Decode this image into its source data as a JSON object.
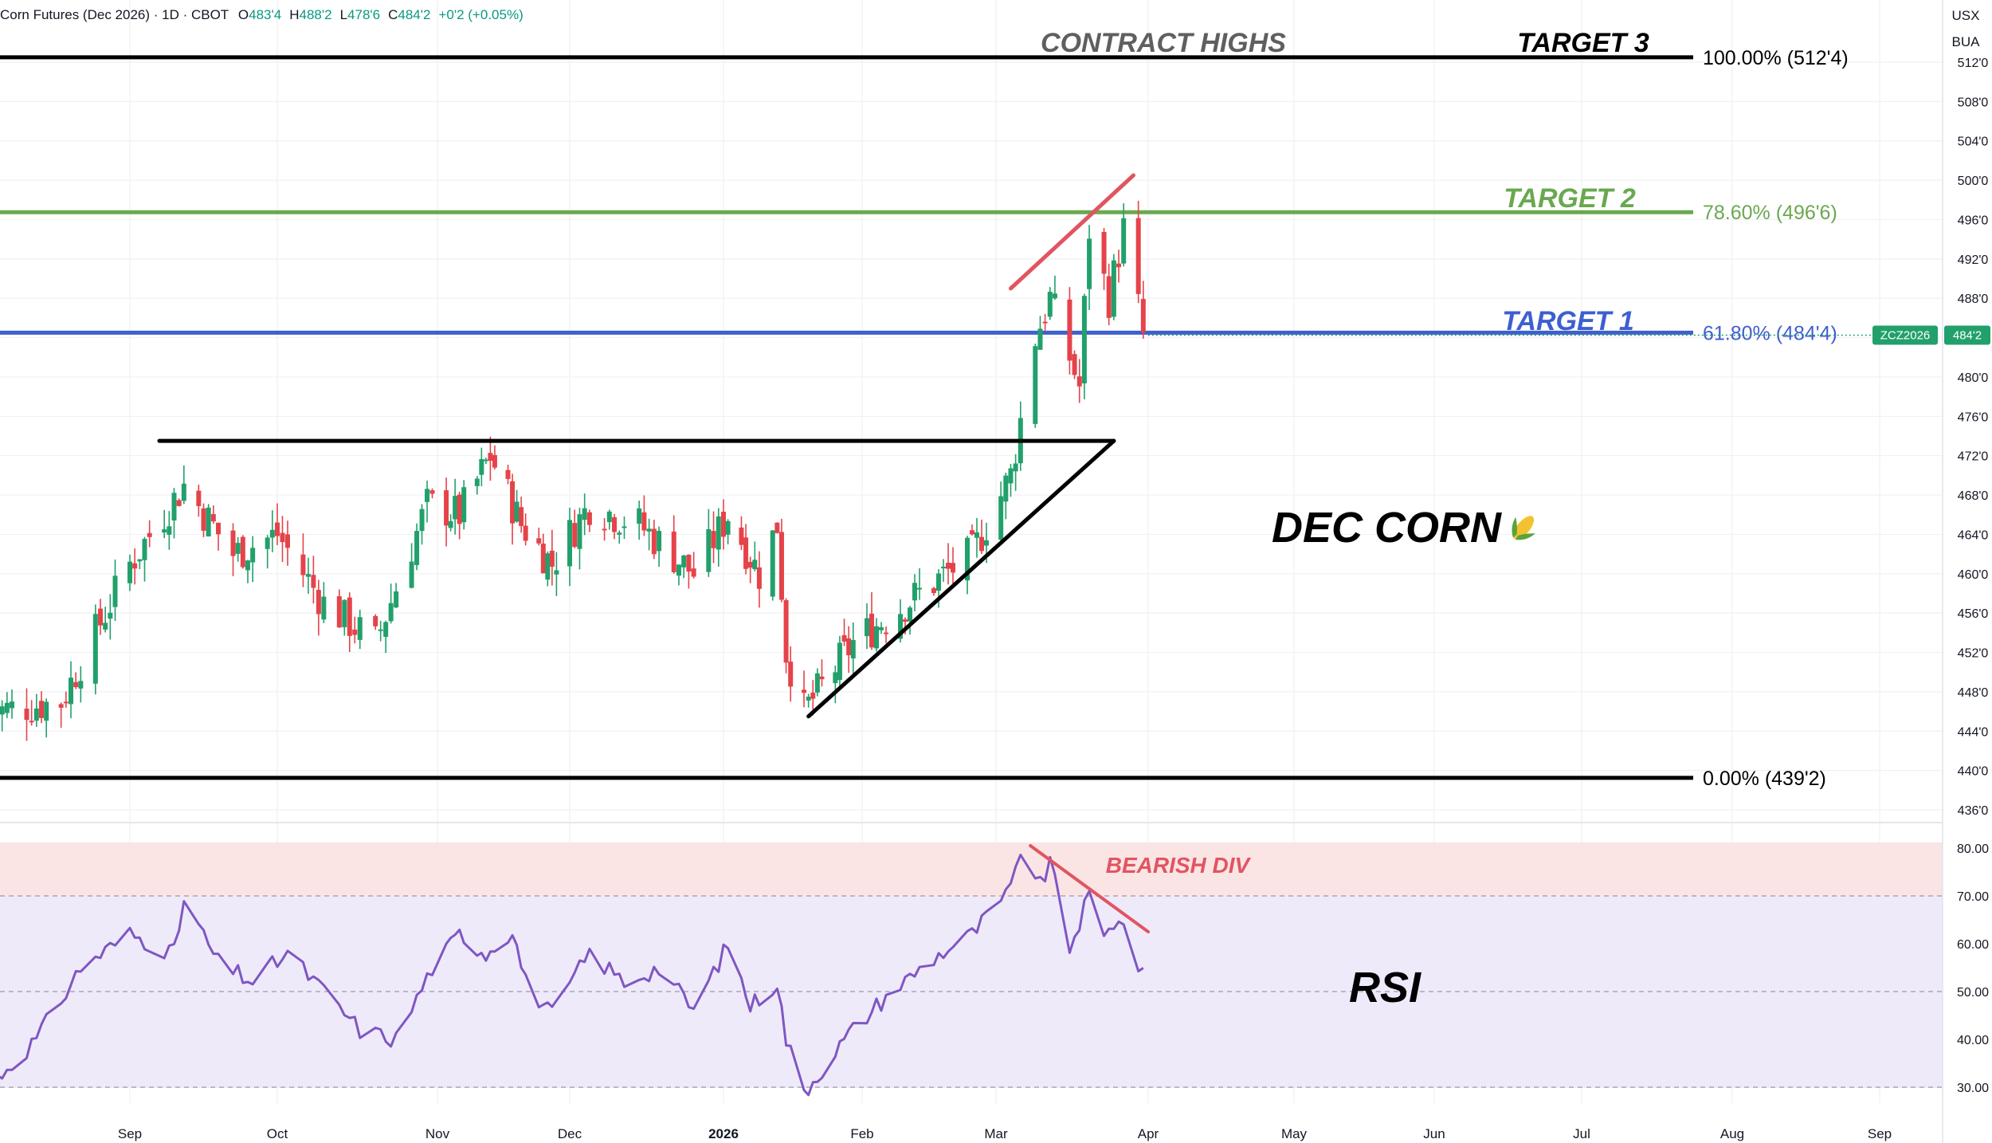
{
  "header": {
    "symbol": "Corn Futures (Dec 2026) · 1D · CBOT",
    "o_label": "O",
    "o": "483'4",
    "h_label": "H",
    "h": "488'2",
    "l_label": "L",
    "l": "478'6",
    "c_label": "C",
    "c": "484'2",
    "change": "+0'2 (+0.05%)"
  },
  "top_right": {
    "currency": "USX",
    "unit": "BUA"
  },
  "price_tag": {
    "symbol": "ZCZ2026",
    "price": "484'2"
  },
  "annotations": {
    "contract_highs": "CONTRACT HIGHS",
    "target3": "TARGET 3",
    "target2": "TARGET 2",
    "target1": "TARGET 1",
    "title": "DEC CORN",
    "rsi": "RSI",
    "bearish_div": "BEARISH DIV"
  },
  "colors": {
    "up": "#22a06b",
    "down": "#e5434a",
    "rsi_line": "#7e57c2",
    "fib_100": "#000000",
    "fib_786": "#6aa84f",
    "fib_618": "#3d5fcf",
    "fib_0": "#000000",
    "trendline": "#000000",
    "divergence": "#e05561"
  },
  "chart_data": [
    {
      "type": "candlestick",
      "name": "Corn Futures (Dec 2026)",
      "x_axis": {
        "labels": [
          "Sep",
          "Oct",
          "Nov",
          "Dec",
          "2026",
          "Feb",
          "Mar",
          "Apr",
          "May",
          "Jun",
          "Jul",
          "Aug",
          "Sep"
        ],
        "range": [
          "2025-08-04",
          "2026-09-30"
        ]
      },
      "y_axis": {
        "ticks": [
          "512'0",
          "508'0",
          "504'0",
          "500'0",
          "496'0",
          "492'0",
          "488'0",
          "484'0",
          "480'0",
          "476'0",
          "472'0",
          "468'0",
          "464'0",
          "460'0",
          "456'0",
          "452'0",
          "448'0",
          "444'0",
          "440'0",
          "436'0"
        ],
        "range": [
          435,
          514
        ]
      },
      "fib_levels": [
        {
          "pct": "100.00%",
          "label": "(512'4)",
          "value": 512.5
        },
        {
          "pct": "78.60%",
          "label": "(496'6)",
          "value": 496.75
        },
        {
          "pct": "61.80%",
          "label": "(484'4)",
          "value": 484.5
        },
        {
          "pct": "0.00%",
          "label": "(439'2)",
          "value": 439.25
        }
      ],
      "anchors": [
        {
          "date": "2025-08-04",
          "close": 446
        },
        {
          "date": "2025-08-18",
          "close": 447
        },
        {
          "date": "2025-09-01",
          "close": 461
        },
        {
          "date": "2025-09-12",
          "close": 469
        },
        {
          "date": "2025-09-22",
          "close": 462
        },
        {
          "date": "2025-10-01",
          "close": 464
        },
        {
          "date": "2025-10-10",
          "close": 457
        },
        {
          "date": "2025-10-20",
          "close": 453
        },
        {
          "date": "2025-10-30",
          "close": 467
        },
        {
          "date": "2025-11-06",
          "close": 466
        },
        {
          "date": "2025-11-13",
          "close": 472
        },
        {
          "date": "2025-11-20",
          "close": 465
        },
        {
          "date": "2025-11-27",
          "close": 461
        },
        {
          "date": "2025-12-05",
          "close": 467
        },
        {
          "date": "2025-12-15",
          "close": 465
        },
        {
          "date": "2025-12-26",
          "close": 460
        },
        {
          "date": "2026-01-02",
          "close": 466
        },
        {
          "date": "2026-01-09",
          "close": 460
        },
        {
          "date": "2026-01-13",
          "close": 465
        },
        {
          "date": "2026-01-15",
          "close": 452
        },
        {
          "date": "2026-01-19",
          "close": 446
        },
        {
          "date": "2026-01-30",
          "close": 453
        },
        {
          "date": "2026-02-13",
          "close": 458
        },
        {
          "date": "2026-02-24",
          "close": 462
        },
        {
          "date": "2026-03-04",
          "close": 470
        },
        {
          "date": "2026-03-09",
          "close": 484
        },
        {
          "date": "2026-03-12",
          "close": 488
        },
        {
          "date": "2026-03-18",
          "close": 479
        },
        {
          "date": "2026-03-20",
          "close": 495
        },
        {
          "date": "2026-03-24",
          "close": 488
        },
        {
          "date": "2026-03-27",
          "close": 495
        },
        {
          "date": "2026-03-31",
          "close": 484.25
        }
      ],
      "trendlines": [
        {
          "name": "resistance",
          "from": {
            "date": "2025-09-07",
            "value": 473.5
          },
          "to": {
            "date": "2026-03-25",
            "value": 473.5
          }
        },
        {
          "name": "rising-support",
          "from": {
            "date": "2026-01-20",
            "value": 445.5
          },
          "to": {
            "date": "2026-03-25",
            "value": 473.5
          }
        },
        {
          "name": "rising-wedge-top",
          "from": {
            "date": "2026-03-04",
            "value": 489
          },
          "to": {
            "date": "2026-03-29",
            "value": 500.5
          }
        }
      ]
    },
    {
      "type": "line",
      "name": "RSI",
      "y_axis": {
        "ticks": [
          "80.00",
          "70.00",
          "60.00",
          "50.00",
          "40.00",
          "30.00"
        ],
        "range": [
          28,
          82
        ],
        "overbought": 70,
        "oversold": 30,
        "mid": 50
      },
      "anchors": [
        {
          "date": "2025-08-04",
          "value": 31
        },
        {
          "date": "2025-08-13",
          "value": 40
        },
        {
          "date": "2025-08-22",
          "value": 55
        },
        {
          "date": "2025-09-01",
          "value": 62
        },
        {
          "date": "2025-09-10",
          "value": 58
        },
        {
          "date": "2025-09-12",
          "value": 69
        },
        {
          "date": "2025-09-19",
          "value": 56
        },
        {
          "date": "2025-09-26",
          "value": 52
        },
        {
          "date": "2025-10-03",
          "value": 58
        },
        {
          "date": "2025-10-10",
          "value": 50
        },
        {
          "date": "2025-10-17",
          "value": 42
        },
        {
          "date": "2025-10-24",
          "value": 40
        },
        {
          "date": "2025-10-31",
          "value": 55
        },
        {
          "date": "2025-11-06",
          "value": 62
        },
        {
          "date": "2025-11-12",
          "value": 58
        },
        {
          "date": "2025-11-18",
          "value": 63
        },
        {
          "date": "2025-11-21",
          "value": 52
        },
        {
          "date": "2025-11-27",
          "value": 45
        },
        {
          "date": "2025-12-05",
          "value": 58
        },
        {
          "date": "2025-12-12",
          "value": 52
        },
        {
          "date": "2025-12-19",
          "value": 55
        },
        {
          "date": "2025-12-26",
          "value": 46
        },
        {
          "date": "2026-01-02",
          "value": 60
        },
        {
          "date": "2026-01-07",
          "value": 47
        },
        {
          "date": "2026-01-13",
          "value": 52
        },
        {
          "date": "2026-01-15",
          "value": 40
        },
        {
          "date": "2026-01-19",
          "value": 29
        },
        {
          "date": "2026-01-29",
          "value": 41
        },
        {
          "date": "2026-02-06",
          "value": 49
        },
        {
          "date": "2026-02-16",
          "value": 57
        },
        {
          "date": "2026-02-24",
          "value": 62
        },
        {
          "date": "2026-03-04",
          "value": 71
        },
        {
          "date": "2026-03-06",
          "value": 80
        },
        {
          "date": "2026-03-10",
          "value": 72
        },
        {
          "date": "2026-03-12",
          "value": 77
        },
        {
          "date": "2026-03-16",
          "value": 59
        },
        {
          "date": "2026-03-20",
          "value": 70
        },
        {
          "date": "2026-03-23",
          "value": 61
        },
        {
          "date": "2026-03-26",
          "value": 66
        },
        {
          "date": "2026-03-31",
          "value": 53
        }
      ],
      "divergence_line": {
        "from": {
          "date": "2026-03-08",
          "value": 80.5
        },
        "to": {
          "date": "2026-04-01",
          "value": 62.5
        }
      }
    }
  ]
}
